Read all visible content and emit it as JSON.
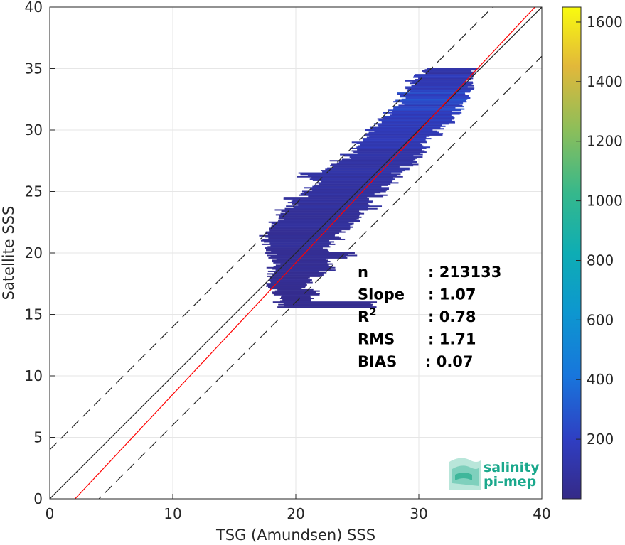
{
  "chart_data": {
    "type": "heatmap",
    "title": "",
    "xlabel": "TSG (Amundsen) SSS",
    "ylabel": "Satellite SSS",
    "xlim": [
      0,
      40
    ],
    "ylim": [
      0,
      40
    ],
    "xticks": [
      "0",
      "10",
      "20",
      "30",
      "40"
    ],
    "yticks": [
      "0",
      "5",
      "10",
      "15",
      "20",
      "25",
      "30",
      "35",
      "40"
    ],
    "grid": true,
    "colormap": "parula",
    "colorbar": {
      "range": [
        0,
        1650
      ],
      "ticks": [
        "200",
        "400",
        "600",
        "800",
        "1000",
        "1200",
        "1400",
        "1600"
      ]
    },
    "reference_lines": {
      "one_to_one": {
        "slope": 1,
        "intercept": 0,
        "color": "#262626",
        "style": "solid"
      },
      "one_to_one_plus": {
        "slope": 1,
        "intercept": 4,
        "color": "#262626",
        "style": "dashed"
      },
      "one_to_one_minus": {
        "slope": 1,
        "intercept": -4,
        "color": "#262626",
        "style": "dashed"
      },
      "regression": {
        "slope": 1.07,
        "intercept": -2.2,
        "color": "#ff0000",
        "style": "solid"
      }
    },
    "density_rows": [
      {
        "y": 34.8,
        "x0": 30.2,
        "x1": 34.9,
        "count": 120
      },
      {
        "y": 34.3,
        "x0": 29.5,
        "x1": 34.8,
        "count": 160
      },
      {
        "y": 33.8,
        "x0": 28.8,
        "x1": 34.7,
        "count": 200
      },
      {
        "y": 33.3,
        "x0": 28.5,
        "x1": 34.6,
        "count": 220
      },
      {
        "y": 32.8,
        "x0": 28.0,
        "x1": 34.5,
        "count": 240
      },
      {
        "y": 32.3,
        "x0": 27.9,
        "x1": 34.2,
        "count": 260
      },
      {
        "y": 31.8,
        "x0": 27.5,
        "x1": 33.8,
        "count": 240
      },
      {
        "y": 31.3,
        "x0": 27.0,
        "x1": 33.5,
        "count": 220
      },
      {
        "y": 30.8,
        "x0": 26.5,
        "x1": 33.0,
        "count": 200
      },
      {
        "y": 30.3,
        "x0": 26.0,
        "x1": 32.5,
        "count": 180
      },
      {
        "y": 29.8,
        "x0": 25.5,
        "x1": 32.0,
        "count": 170
      },
      {
        "y": 29.3,
        "x0": 25.0,
        "x1": 31.5,
        "count": 160
      },
      {
        "y": 28.8,
        "x0": 24.5,
        "x1": 31.0,
        "count": 150
      },
      {
        "y": 28.3,
        "x0": 24.0,
        "x1": 30.8,
        "count": 140
      },
      {
        "y": 27.8,
        "x0": 23.5,
        "x1": 30.5,
        "count": 130
      },
      {
        "y": 27.3,
        "x0": 22.5,
        "x1": 30.0,
        "count": 120
      },
      {
        "y": 26.8,
        "x0": 22.0,
        "x1": 29.5,
        "count": 110
      },
      {
        "y": 26.3,
        "x0": 20.0,
        "x1": 29.0,
        "count": 110
      },
      {
        "y": 25.8,
        "x0": 21.0,
        "x1": 28.5,
        "count": 100
      },
      {
        "y": 25.3,
        "x0": 20.5,
        "x1": 28.0,
        "count": 100
      },
      {
        "y": 24.8,
        "x0": 20.0,
        "x1": 27.5,
        "count": 90
      },
      {
        "y": 24.3,
        "x0": 19.0,
        "x1": 26.5,
        "count": 90
      },
      {
        "y": 23.8,
        "x0": 19.0,
        "x1": 27.0,
        "count": 80
      },
      {
        "y": 23.3,
        "x0": 18.0,
        "x1": 26.0,
        "count": 80
      },
      {
        "y": 22.8,
        "x0": 18.5,
        "x1": 25.5,
        "count": 70
      },
      {
        "y": 22.3,
        "x0": 17.5,
        "x1": 25.0,
        "count": 70
      },
      {
        "y": 21.8,
        "x0": 17.0,
        "x1": 24.5,
        "count": 60
      },
      {
        "y": 21.3,
        "x0": 17.0,
        "x1": 24.0,
        "count": 60
      },
      {
        "y": 20.8,
        "x0": 17.0,
        "x1": 23.5,
        "count": 60
      },
      {
        "y": 20.3,
        "x0": 17.5,
        "x1": 23.0,
        "count": 50
      },
      {
        "y": 19.8,
        "x0": 17.5,
        "x1": 25.0,
        "count": 50
      },
      {
        "y": 19.3,
        "x0": 18.0,
        "x1": 23.0,
        "count": 50
      },
      {
        "y": 18.8,
        "x0": 17.5,
        "x1": 23.5,
        "count": 50
      },
      {
        "y": 18.3,
        "x0": 17.5,
        "x1": 22.5,
        "count": 40
      },
      {
        "y": 17.8,
        "x0": 17.5,
        "x1": 21.5,
        "count": 40
      },
      {
        "y": 17.3,
        "x0": 17.5,
        "x1": 21.0,
        "count": 40
      },
      {
        "y": 16.8,
        "x0": 18.0,
        "x1": 22.0,
        "count": 30
      },
      {
        "y": 16.3,
        "x0": 18.5,
        "x1": 21.5,
        "count": 30
      },
      {
        "y": 15.8,
        "x0": 18.0,
        "x1": 27.5,
        "count": 30
      }
    ],
    "stats": [
      {
        "label": "n",
        "value": ": 213133"
      },
      {
        "label": "Slope",
        "value": ": 1.07"
      },
      {
        "label": "R",
        "sup": "2",
        "value": ": 0.78"
      },
      {
        "label": "RMS",
        "value": ": 1.71"
      },
      {
        "label": "BIAS",
        "value": ": 0.07"
      }
    ]
  },
  "logo": {
    "line1": "salinity",
    "line2": "pi-mep"
  }
}
